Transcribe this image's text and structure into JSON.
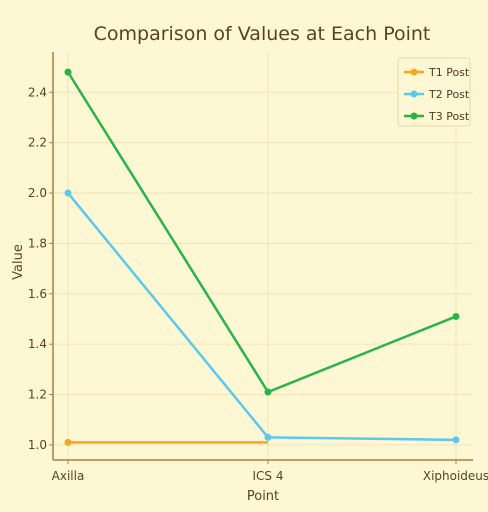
{
  "chart_data": {
    "type": "line",
    "title": "Comparison of Values at Each Point",
    "xlabel": "Point",
    "ylabel": "Value",
    "categories": [
      "Axilla",
      "ICS 4",
      "Xiphoideus"
    ],
    "ylim": [
      0.94,
      2.56
    ],
    "yticks": [
      "1.0",
      "1.2",
      "1.4",
      "1.6",
      "1.8",
      "2.0",
      "2.2",
      "2.4"
    ],
    "grid": true,
    "legend_position": "top-right",
    "series": [
      {
        "name": "T1 Post",
        "values": [
          1.01,
          1.01,
          null
        ],
        "color": "#f5a623"
      },
      {
        "name": "T2 Post",
        "values": [
          2.0,
          1.03,
          1.02
        ],
        "color": "#5bc8ee"
      },
      {
        "name": "T3 Post",
        "values": [
          2.48,
          1.21,
          1.51
        ],
        "color": "#27b548"
      }
    ]
  },
  "colors": {
    "background": "#fdf8d3",
    "grid": "#f3e3b9",
    "axis": "#a87e45"
  }
}
